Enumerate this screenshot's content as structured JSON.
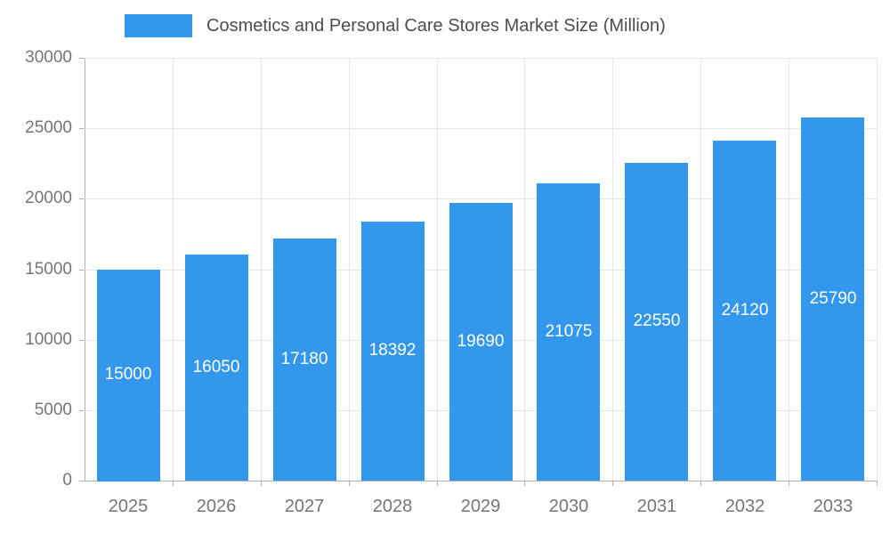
{
  "chart_data": {
    "type": "bar",
    "title": "Cosmetics and Personal Care Stores Market Size (Million)",
    "categories": [
      "2025",
      "2026",
      "2027",
      "2028",
      "2029",
      "2030",
      "2031",
      "2032",
      "2033"
    ],
    "values": [
      15000,
      16050,
      17180,
      18392,
      19690,
      21075,
      22550,
      24120,
      25790
    ],
    "xlabel": "",
    "ylabel": "",
    "ylim": [
      0,
      30000
    ],
    "yticks": [
      0,
      5000,
      10000,
      15000,
      20000,
      25000,
      30000
    ],
    "grid": true,
    "legend_position": "top",
    "value_labels": "inside-center",
    "colors": {
      "bar": "#3398ec",
      "value_label_text": "#ffffff",
      "axis_text": "#757575",
      "title_text": "#4d4d4d",
      "gridline": "#e6e6e6",
      "axis_line": "#b0b0b0"
    }
  }
}
